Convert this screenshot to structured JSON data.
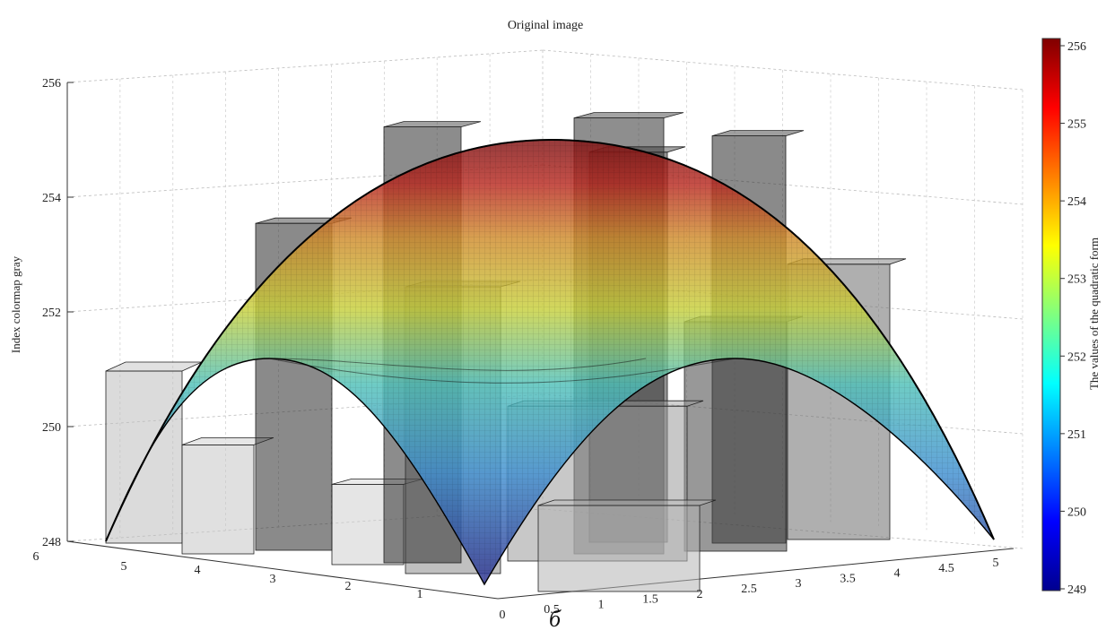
{
  "chart_data": {
    "type": "bar3d",
    "title": "Original image",
    "zlabel": "Index colormap gray",
    "zlim": [
      248,
      256
    ],
    "z_ticks": [
      "248",
      "250",
      "252",
      "254",
      "256"
    ],
    "x_ticks": [
      "0",
      "0.5",
      "1",
      "1.5",
      "2",
      "2.5",
      "3",
      "3.5",
      "4",
      "4.5",
      "5"
    ],
    "y_ticks": [
      "6",
      "5",
      "4",
      "3",
      "2",
      "1"
    ],
    "grid": true,
    "colorbar": {
      "label": "The values of the quadratic form",
      "ticks": [
        "249",
        "250",
        "251",
        "252",
        "253",
        "254",
        "255",
        "256"
      ],
      "colormap": "jet"
    },
    "surface": {
      "kind": "quadratic form",
      "peak": 255,
      "corner_min": 248
    },
    "bars": [
      {
        "id": "b1",
        "value": 251
      },
      {
        "id": "b2",
        "value": 249.9
      },
      {
        "id": "b3",
        "value": 249.4
      },
      {
        "id": "b4",
        "value": 253.7
      },
      {
        "id": "b5",
        "value": 253.0
      },
      {
        "id": "b6",
        "value": 255.6
      },
      {
        "id": "b7",
        "value": 255.6
      },
      {
        "id": "b8",
        "value": 255.1
      },
      {
        "id": "b9",
        "value": 254.8
      },
      {
        "id": "b10",
        "value": 252.8
      },
      {
        "id": "b11",
        "value": 252.0
      },
      {
        "id": "b12",
        "value": 250.7
      },
      {
        "id": "b13",
        "value": 249.5
      }
    ]
  },
  "caption": "б"
}
